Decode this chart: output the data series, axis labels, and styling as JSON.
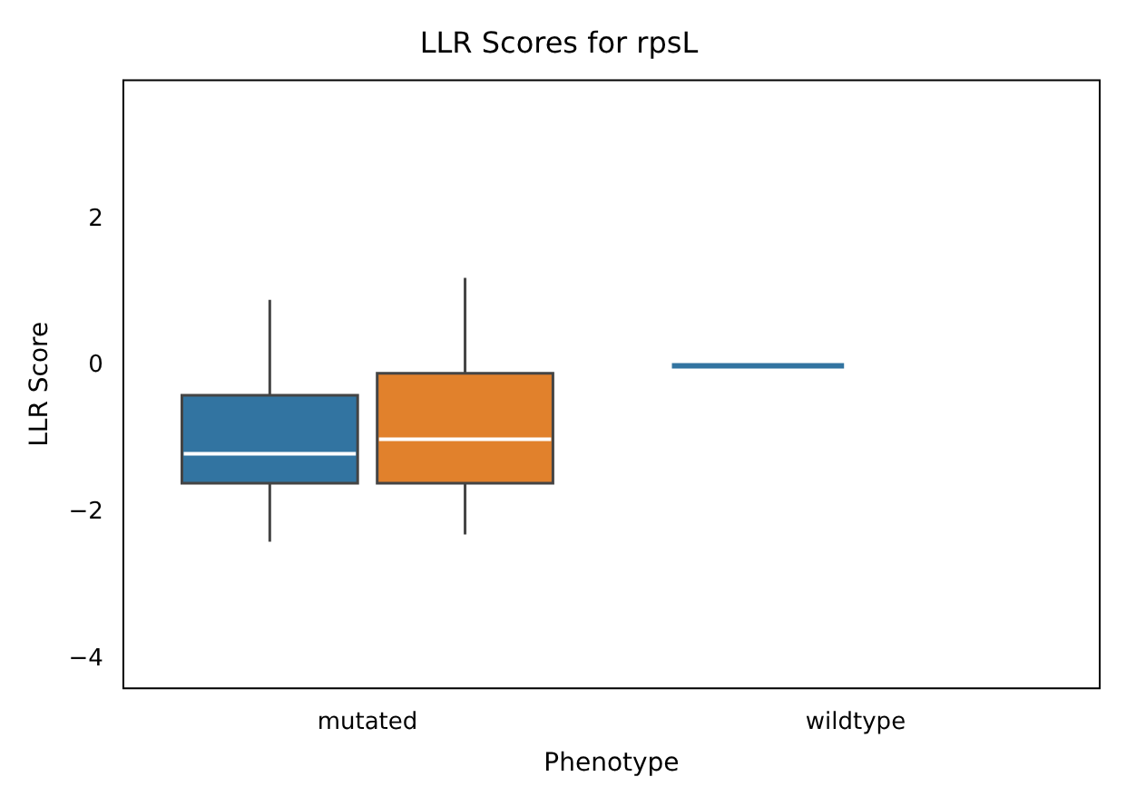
{
  "chart_data": {
    "type": "box",
    "title": "LLR Scores for rpsL",
    "xlabel": "Phenotype",
    "ylabel": "LLR Score",
    "categories": [
      "mutated",
      "wildtype"
    ],
    "series": [
      {
        "color": "#3274a1",
        "boxes": [
          {
            "low": -2.4,
            "q1": -1.6,
            "median": -1.2,
            "q3": -0.4,
            "high": 0.9
          },
          {
            "low": 0,
            "q1": 0,
            "median": 0,
            "q3": 0,
            "high": 0
          }
        ]
      },
      {
        "color": "#e1812c",
        "boxes": [
          {
            "low": -2.3,
            "q1": -1.6,
            "median": -1.0,
            "q3": -0.1,
            "high": 1.2
          },
          null
        ]
      }
    ],
    "ylim": [
      -4.4,
      3.9
    ],
    "yticks": [
      -4,
      -2,
      0,
      2
    ],
    "grid": false,
    "legend": false
  }
}
